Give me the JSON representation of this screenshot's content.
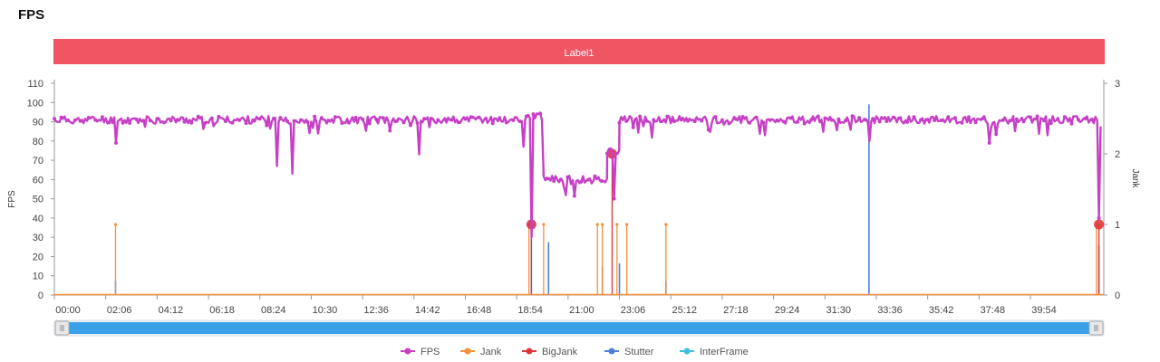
{
  "page": {
    "title": "FPS"
  },
  "chart_data": {
    "type": "line",
    "title": "FPS",
    "band_label": "Label1",
    "band_color": "#f05564",
    "ylabel": "FPS",
    "y2label": "Jank",
    "ylim": [
      0,
      110
    ],
    "y2lim": [
      0,
      3
    ],
    "yticks": [
      "0",
      "10",
      "20",
      "30",
      "40",
      "50",
      "60",
      "70",
      "80",
      "90",
      "100",
      "110"
    ],
    "y2ticks": [
      "0",
      "1",
      "2",
      "3"
    ],
    "xlim": [
      0,
      42.9
    ],
    "xtick_labels": [
      "00:00",
      "02:06",
      "04:12",
      "06:18",
      "08:24",
      "10:30",
      "12:36",
      "14:42",
      "16:48",
      "18:54",
      "21:00",
      "23:06",
      "25:12",
      "27:18",
      "29:24",
      "31:30",
      "33:36",
      "35:42",
      "37:48",
      "39:54"
    ],
    "grid": false,
    "legend_position": "bottom-center",
    "slider": {
      "range": [
        0,
        100
      ]
    },
    "series": [
      {
        "name": "FPS",
        "color": "#c640c6",
        "axis": "left",
        "segments": [
          {
            "x_start": 0.0,
            "x_end": 19.3,
            "base": 91,
            "dips": [
              [
                2.5,
                79
              ],
              [
                9.1,
                67
              ],
              [
                9.7,
                63
              ],
              [
                14.9,
                73
              ],
              [
                19.2,
                77
              ]
            ]
          },
          {
            "x_start": 19.3,
            "x_end": 20.0,
            "base": 93,
            "dips": [
              [
                19.5,
                30
              ]
            ]
          },
          {
            "x_start": 20.0,
            "x_end": 22.6,
            "base": 60,
            "dips": []
          },
          {
            "x_start": 22.6,
            "x_end": 23.1,
            "base": 75,
            "dips": [
              [
                22.9,
                50
              ]
            ]
          },
          {
            "x_start": 23.1,
            "x_end": 42.8,
            "base": 91,
            "dips": [
              [
                33.3,
                80
              ],
              [
                38.2,
                79
              ],
              [
                42.7,
                40
              ]
            ]
          }
        ]
      },
      {
        "name": "Jank",
        "color": "#f5903d",
        "axis": "right",
        "spikes": [
          [
            2.5,
            1
          ],
          [
            19.4,
            1
          ],
          [
            20.0,
            1
          ],
          [
            22.2,
            1
          ],
          [
            22.4,
            1
          ],
          [
            23.0,
            1
          ],
          [
            23.4,
            1
          ],
          [
            25.0,
            1
          ],
          [
            42.6,
            1
          ]
        ]
      },
      {
        "name": "BigJank",
        "color": "#e0353a",
        "axis": "right",
        "spikes": [
          [
            19.5,
            1
          ],
          [
            22.8,
            2
          ],
          [
            42.7,
            1
          ]
        ]
      },
      {
        "name": "Stutter",
        "color": "#4e7fd6",
        "axis": "right",
        "spikes": [
          [
            2.5,
            0.2
          ],
          [
            19.5,
            0.8
          ],
          [
            20.2,
            0.75
          ],
          [
            22.4,
            0.4
          ],
          [
            23.1,
            0.45
          ],
          [
            25.0,
            0.2
          ],
          [
            33.3,
            2.7
          ],
          [
            42.7,
            0.7
          ]
        ]
      },
      {
        "name": "InterFrame",
        "color": "#3cc0de",
        "axis": "right",
        "spikes": []
      }
    ]
  }
}
